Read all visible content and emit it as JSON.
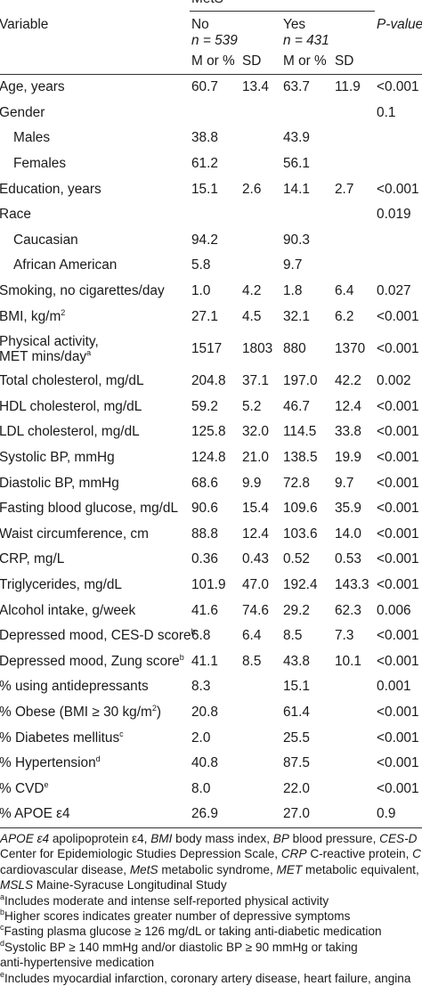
{
  "header": {
    "group": "MetS",
    "variable": "Variable",
    "p_value": "P-value",
    "no": {
      "label": "No",
      "n": "n = 539"
    },
    "yes": {
      "label": "Yes",
      "n": "n = 431"
    },
    "sub": {
      "m": "M or %",
      "sd": "SD"
    }
  },
  "rows": [
    {
      "label": "Age, years",
      "nm": "60.7",
      "nsd": "13.4",
      "ym": "63.7",
      "ysd": "11.9",
      "p": "<0.001"
    },
    {
      "label": "Gender",
      "nm": "",
      "nsd": "",
      "ym": "",
      "ysd": "",
      "p": "0.1"
    },
    {
      "label": "Males",
      "nm": "38.8",
      "nsd": "",
      "ym": "43.9",
      "ysd": "",
      "p": ""
    },
    {
      "label": "Females",
      "nm": "61.2",
      "nsd": "",
      "ym": "56.1",
      "ysd": "",
      "p": ""
    },
    {
      "label": "Education, years",
      "nm": "15.1",
      "nsd": "2.6",
      "ym": "14.1",
      "ysd": "2.7",
      "p": "<0.001"
    },
    {
      "label": "Race",
      "nm": "",
      "nsd": "",
      "ym": "",
      "ysd": "",
      "p": "0.019"
    },
    {
      "label": "Caucasian",
      "nm": "94.2",
      "nsd": "",
      "ym": "90.3",
      "ysd": "",
      "p": ""
    },
    {
      "label": "African American",
      "nm": "5.8",
      "nsd": "",
      "ym": "9.7",
      "ysd": "",
      "p": ""
    },
    {
      "label": "Smoking, no cigarettes/day",
      "nm": "1.0",
      "nsd": "4.2",
      "ym": "1.8",
      "ysd": "6.4",
      "p": "0.027"
    },
    {
      "label": "BMI, kg/m",
      "sup": "2",
      "nm": "27.1",
      "nsd": "4.5",
      "ym": "32.1",
      "ysd": "6.2",
      "p": "<0.001"
    },
    {
      "label": "Physical activity,",
      "label2": "MET mins/day",
      "sup": "a",
      "nm": "1517",
      "nsd": "1803",
      "ym": "880",
      "ysd": "1370",
      "p": "<0.001"
    },
    {
      "label": "Total cholesterol, mg/dL",
      "nm": "204.8",
      "nsd": "37.1",
      "ym": "197.0",
      "ysd": "42.2",
      "p": "0.002"
    },
    {
      "label": "HDL cholesterol, mg/dL",
      "nm": "59.2",
      "nsd": "5.2",
      "ym": "46.7",
      "ysd": "12.4",
      "p": "<0.001"
    },
    {
      "label": "LDL cholesterol, mg/dL",
      "nm": "125.8",
      "nsd": "32.0",
      "ym": "114.5",
      "ysd": "33.8",
      "p": "<0.001"
    },
    {
      "label": "Systolic BP, mmHg",
      "nm": "124.8",
      "nsd": "21.0",
      "ym": "138.5",
      "ysd": "19.9",
      "p": "<0.001"
    },
    {
      "label": "Diastolic BP, mmHg",
      "nm": "68.6",
      "nsd": "9.9",
      "ym": "72.8",
      "ysd": "9.7",
      "p": "<0.001"
    },
    {
      "label": "Fasting blood glucose, mg/dL",
      "nm": "90.6",
      "nsd": "15.4",
      "ym": "109.6",
      "ysd": "35.9",
      "p": "<0.001"
    },
    {
      "label": "Waist circumference, cm",
      "nm": "88.8",
      "nsd": "12.4",
      "ym": "103.6",
      "ysd": "14.0",
      "p": "<0.001"
    },
    {
      "label": "CRP, mg/L",
      "nm": "0.36",
      "nsd": "0.43",
      "ym": "0.52",
      "ysd": "0.53",
      "p": "<0.001"
    },
    {
      "label": "Triglycerides, mg/dL",
      "nm": "101.9",
      "nsd": "47.0",
      "ym": "192.4",
      "ysd": "143.3",
      "p": "<0.001"
    },
    {
      "label": "Alcohol intake, g/week",
      "nm": "41.6",
      "nsd": "74.6",
      "ym": "29.2",
      "ysd": "62.3",
      "p": "0.006"
    },
    {
      "label": "Depressed mood, CES-D score",
      "sup": "b",
      "nm": "6.8",
      "nsd": "6.4",
      "ym": "8.5",
      "ysd": "7.3",
      "p": "<0.001"
    },
    {
      "label": "Depressed mood, Zung score",
      "sup": "b",
      "nm": "41.1",
      "nsd": "8.5",
      "ym": "43.8",
      "ysd": "10.1",
      "p": "<0.001"
    },
    {
      "label": "% using antidepressants",
      "nm": "8.3",
      "nsd": "",
      "ym": "15.1",
      "ysd": "",
      "p": "0.001"
    },
    {
      "label": "% Obese (BMI ≥ 30 kg/m",
      "sup": "2",
      "suffix": ")",
      "nm": "20.8",
      "nsd": "",
      "ym": "61.4",
      "ysd": "",
      "p": "<0.001"
    },
    {
      "label": "% Diabetes mellitus",
      "sup": "c",
      "nm": "2.0",
      "nsd": "",
      "ym": "25.5",
      "ysd": "",
      "p": "<0.001"
    },
    {
      "label": "% Hypertension",
      "sup": "d",
      "nm": "40.8",
      "nsd": "",
      "ym": "87.5",
      "ysd": "",
      "p": "<0.001"
    },
    {
      "label": "% CVD",
      "sup": "e",
      "nm": "8.0",
      "nsd": "",
      "ym": "22.0",
      "ysd": "",
      "p": "<0.001"
    },
    {
      "label": "% APOE ε4",
      "nm": "26.9",
      "nsd": "",
      "ym": "27.0",
      "ysd": "",
      "p": "0.9"
    }
  ],
  "footnotes": {
    "abbrev": [
      {
        "i": "APOE ε4",
        "t": " apolipoprotein ε4, "
      },
      {
        "i": "BMI",
        "t": " body mass index, "
      },
      {
        "i": "BP",
        "t": " blood pressure, "
      },
      {
        "i": "CES-D",
        "t": ""
      }
    ],
    "abbrev2": [
      {
        "i": "",
        "t": "Center for Epidemiologic Studies Depression Scale, "
      },
      {
        "i": "CRP",
        "t": " C-reactive protein, "
      },
      {
        "i": "CVD",
        "t": ""
      }
    ],
    "abbrev3": [
      {
        "i": "",
        "t": "cardiovascular disease, "
      },
      {
        "i": "MetS",
        "t": " metabolic syndrome, "
      },
      {
        "i": "MET",
        "t": " metabolic equivalent,"
      }
    ],
    "abbrev4": [
      {
        "i": "MSLS",
        "t": " Maine-Syracuse Longitudinal Study"
      }
    ],
    "a": "Includes moderate and intense self-reported physical activity",
    "b": "Higher scores indicates greater number of depressive symptoms",
    "c": "Fasting plasma glucose ≥ 126 mg/dL or taking anti-diabetic medication",
    "d": "Systolic BP ≥ 140 mmHg and/or diastolic BP ≥ 90 mmHg or taking",
    "d2": "anti-hypertensive medication",
    "e": "Includes myocardial infarction, coronary artery disease, heart failure, angina"
  }
}
